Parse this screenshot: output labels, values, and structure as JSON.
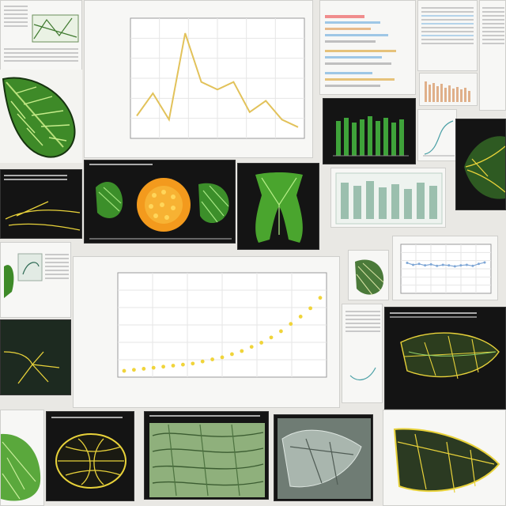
{
  "chart_data": [
    {
      "type": "line",
      "x": [
        1,
        2,
        3,
        4,
        5,
        6,
        7,
        8,
        9,
        10,
        11
      ],
      "values": [
        11.1,
        11.4,
        11.05,
        12.2,
        11.55,
        11.45,
        11.55,
        11.15,
        11.3,
        11.05,
        10.95
      ],
      "ylim": [
        10.8,
        12.4
      ],
      "color": "#e2c25a"
    },
    {
      "type": "scatter",
      "x": [
        1,
        2,
        3,
        4,
        5,
        6,
        7,
        8,
        9,
        10,
        11,
        12,
        13,
        14,
        15,
        16,
        17,
        18,
        19,
        20,
        21
      ],
      "values": [
        0.06,
        0.07,
        0.08,
        0.09,
        0.1,
        0.11,
        0.12,
        0.13,
        0.15,
        0.17,
        0.19,
        0.22,
        0.25,
        0.29,
        0.33,
        0.38,
        0.44,
        0.51,
        0.58,
        0.66,
        0.76
      ],
      "ylim": [
        0,
        1
      ],
      "color": "#f0d43a"
    },
    {
      "type": "line",
      "x": [
        1,
        2,
        3,
        4,
        5,
        6,
        7,
        8,
        9,
        10,
        11,
        12,
        13,
        14
      ],
      "values": [
        0.62,
        0.58,
        0.6,
        0.57,
        0.59,
        0.56,
        0.58,
        0.57,
        0.55,
        0.57,
        0.58,
        0.56,
        0.6,
        0.63
      ],
      "ylim": [
        0,
        1
      ],
      "color": "#7fa7d6"
    }
  ],
  "colors": {
    "leaf_green": "#4f9b2e",
    "leaf_dark": "#1f4d18",
    "accent_yellow": "#f0d43a",
    "orange": "#f39a1d"
  }
}
